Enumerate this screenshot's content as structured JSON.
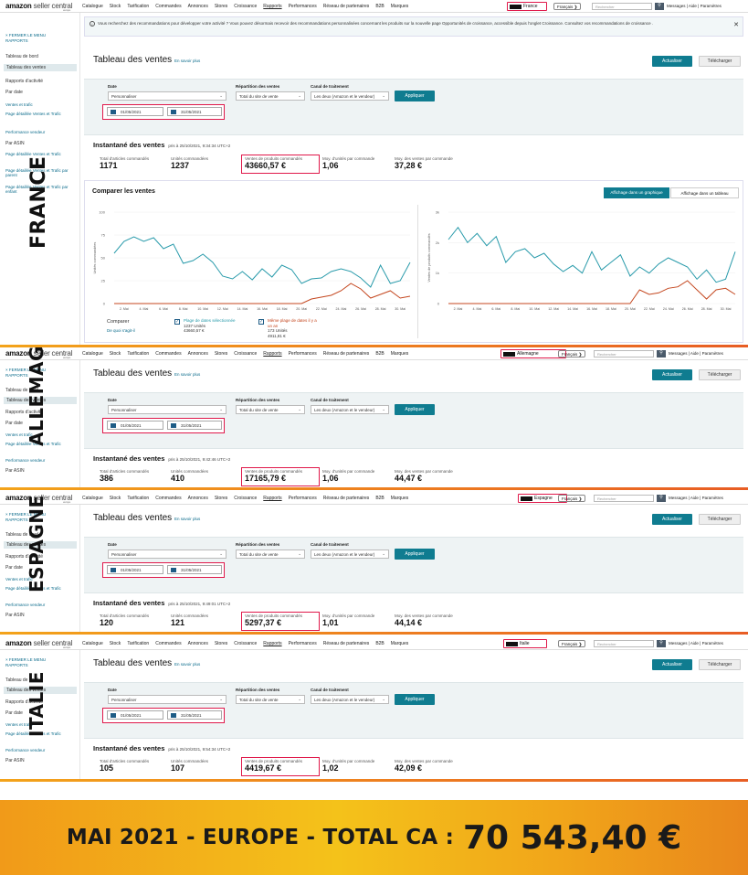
{
  "common": {
    "logo_bold": "amazon",
    "logo_rest": " seller central",
    "logo_region": "europe",
    "menu": [
      "Catalogue",
      "Stock",
      "Tarification",
      "Commandes",
      "Annonces",
      "Stores",
      "Croissance",
      "Rapports",
      "Performances",
      "Réseau de partenaires",
      "B2B",
      "Marques"
    ],
    "language": "Français ❯",
    "search_placeholder": "Rechercher",
    "toplinks": "Messages | Aide | Paramètres",
    "close_menu": "FERMER LE MENU RAPPORTS",
    "sidebar_dashboard": "Tableau de bord",
    "sidebar_sales": "Tableau des ventes",
    "sidebar_activity": "Rapports d'activité",
    "sidebar_by_date": "Par date",
    "sidebar_sub1": "Ventes et trafic",
    "sidebar_sub2": "Page détaillée Ventes et Trafic",
    "sidebar_sub3": "Performance vendeur",
    "sidebar_by_asin": "Par ASIN",
    "sidebar_sub4": "Page détaillée Ventes et Trafic",
    "sidebar_sub5": "Page détaillée Ventes et Trafic par parent",
    "sidebar_sub6": "Page détaillée Ventes et Trafic par enfant",
    "report_title": "Tableau des ventes",
    "report_learn": "En savoir plus",
    "refresh": "Actualiser",
    "download": "Télécharger",
    "date_label": "Date",
    "date_select": "Personnaliser",
    "date_from": "01/05/2021",
    "date_to": "31/05/2021",
    "distribution_label": "Répartition des ventes",
    "distribution_select": "Total du site de vente",
    "channel_label": "Canal de traitement",
    "channel_select": "Les deux (Amazon et le vendeur)",
    "apply": "Appliquer",
    "snapshot_title": "Instantané des ventes",
    "m_items": "Total d'articles commandés",
    "m_units": "Unités commandées",
    "m_sales": "Ventes de produits commandés",
    "m_upo": "Moy. d'unités par commande",
    "m_spo": "Moy. des ventes par commande"
  },
  "notice": "Vous recherchez des recommandations pour développer votre activité ? Vous pouvez désormais recevoir des recommandations personnalisées concernant les produits sur la nouvelle page Opportunités de croissance, accessible depuis l'onglet Croissance. Consultez vos recommandations de croissance .",
  "compare": {
    "title": "Comparer les ventes",
    "btn_graph": "Affichage dans un graphique",
    "btn_table": "Affichage dans un tableau",
    "compare_label": "Comparer",
    "what_is": "De quoi s'agit-il",
    "sel_title": "Plage de dates sélectionnée",
    "sel_units": "1237 Unités",
    "sel_sales": "43660,57 €",
    "prev_title": "Même plage de dates il y a un an",
    "prev_units": "173 Unités",
    "prev_sales": "4911,81 €"
  },
  "panels": [
    {
      "country": "France",
      "watermark": "FRANCE",
      "snap_time": "pris à 25/10/2021, 9:34:34 UTC+2",
      "items": "1171",
      "units": "1237",
      "sales": "43660,57 €",
      "upo": "1,06",
      "spo": "37,28 €"
    },
    {
      "country": "Allemagne",
      "watermark": "ALLEMAGNE",
      "snap_time": "pris à 25/10/2021, 9:42:46 UTC+2",
      "items": "386",
      "units": "410",
      "sales": "17165,79 €",
      "upo": "1,06",
      "spo": "44,47 €"
    },
    {
      "country": "Espagne",
      "watermark": "ESPAGNE",
      "snap_time": "pris à 25/10/2021, 9:49:01 UTC+2",
      "items": "120",
      "units": "121",
      "sales": "5297,37 €",
      "upo": "1,01",
      "spo": "44,14 €"
    },
    {
      "country": "Italie",
      "watermark": "ITALIE",
      "snap_time": "pris à 25/10/2021, 9:54:34 UTC+2",
      "items": "105",
      "units": "107",
      "sales": "4419,67 €",
      "upo": "1,02",
      "spo": "42,09 €"
    }
  ],
  "banner": {
    "text": "MAI 2021 - EUROPE - TOTAL CA :",
    "value": "70 543,40 €"
  },
  "chart_data": [
    {
      "type": "line",
      "ylabel": "Unités commandées",
      "ylim": [
        0,
        100
      ],
      "yticks": [
        "0",
        "25",
        "50",
        "75",
        "100"
      ],
      "categories": [
        "2. Mai",
        "4. Mai",
        "6. Mai",
        "8. Mai",
        "10. Mai",
        "12. Mai",
        "14. Mai",
        "16. Mai",
        "18. Mai",
        "20. Mai",
        "22. Mai",
        "24. Mai",
        "26. Mai",
        "28. Mai",
        "30. Mai"
      ],
      "x": [
        1,
        2,
        3,
        4,
        5,
        6,
        7,
        8,
        9,
        10,
        11,
        12,
        13,
        14,
        15,
        16,
        17,
        18,
        19,
        20,
        21,
        22,
        23,
        24,
        25,
        26,
        27,
        28,
        29,
        30,
        31
      ],
      "series": [
        {
          "color": "#2a9bab",
          "values": [
            55,
            68,
            73,
            68,
            72,
            60,
            65,
            44,
            47,
            54,
            45,
            30,
            27,
            35,
            26,
            38,
            29,
            42,
            37,
            22,
            27,
            28,
            35,
            38,
            35,
            28,
            18,
            42,
            22,
            25,
            45
          ]
        },
        {
          "color": "#c4471f",
          "values": [
            0,
            0,
            0,
            0,
            0,
            0,
            0,
            0,
            0,
            0,
            0,
            0,
            0,
            0,
            0,
            0,
            0,
            0,
            0,
            0,
            5,
            7,
            9,
            14,
            22,
            16,
            6,
            10,
            14,
            6,
            8
          ]
        }
      ]
    },
    {
      "type": "line",
      "ylabel": "Ventes de produits commandés",
      "ylim": [
        0,
        3000
      ],
      "yticks": [
        "0",
        "1k",
        "2k",
        "3k"
      ],
      "categories": [
        "2. Mai",
        "4. Mai",
        "6. Mai",
        "8. Mai",
        "10. Mai",
        "12. Mai",
        "14. Mai",
        "16. Mai",
        "18. Mai",
        "20. Mai",
        "22. Mai",
        "24. Mai",
        "26. Mai",
        "28. Mai",
        "30. Mai"
      ],
      "x": [
        1,
        2,
        3,
        4,
        5,
        6,
        7,
        8,
        9,
        10,
        11,
        12,
        13,
        14,
        15,
        16,
        17,
        18,
        19,
        20,
        21,
        22,
        23,
        24,
        25,
        26,
        27,
        28,
        29,
        30,
        31
      ],
      "series": [
        {
          "color": "#2a9bab",
          "values": [
            2100,
            2500,
            2000,
            2300,
            1900,
            2200,
            1350,
            1700,
            1800,
            1500,
            1650,
            1300,
            1050,
            1250,
            1000,
            1700,
            1100,
            1350,
            1600,
            900,
            1200,
            1000,
            1300,
            1500,
            1350,
            1200,
            800,
            1100,
            700,
            800,
            1700
          ]
        },
        {
          "color": "#c4471f",
          "values": [
            0,
            0,
            0,
            0,
            0,
            0,
            0,
            0,
            0,
            0,
            0,
            0,
            0,
            0,
            0,
            0,
            0,
            0,
            0,
            0,
            450,
            300,
            350,
            500,
            550,
            750,
            450,
            150,
            450,
            500,
            300
          ]
        }
      ]
    }
  ]
}
